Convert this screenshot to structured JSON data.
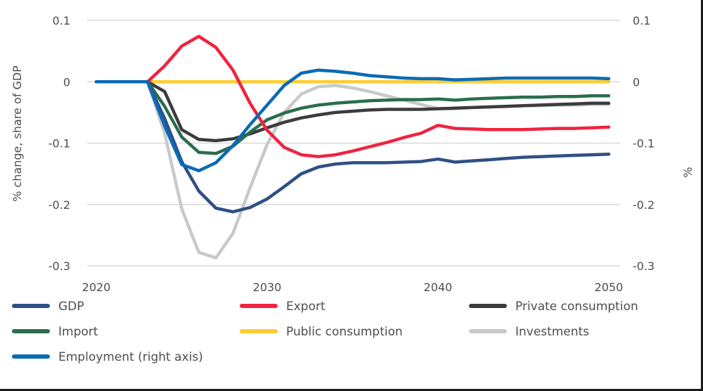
{
  "chart_data": {
    "type": "line",
    "title": "",
    "xlabel": "",
    "ylabel": "% change, share of GDP",
    "ylabel_right": "%",
    "xlim": [
      2020,
      2050
    ],
    "ylim": [
      -0.3,
      0.1
    ],
    "ylim_right": [
      -0.3,
      0.1
    ],
    "x_ticks": [
      2020,
      2030,
      2040,
      2050
    ],
    "x_tick_labels": [
      "2020",
      "2030",
      "2040",
      "2050"
    ],
    "y_ticks": [
      0.1,
      0,
      -0.1,
      -0.2,
      -0.3
    ],
    "y_tick_labels": [
      "0.1",
      "0",
      "-0.1",
      "-0.2",
      "-0.3"
    ],
    "y_tick_labels_right": [
      "0.1",
      "0",
      "-0.1",
      "-0.2",
      "-0.3"
    ],
    "grid": true,
    "legend_position": "bottom",
    "x": [
      2020,
      2021,
      2022,
      2023,
      2024,
      2025,
      2026,
      2027,
      2028,
      2029,
      2030,
      2031,
      2032,
      2033,
      2034,
      2035,
      2036,
      2037,
      2038,
      2039,
      2040,
      2041,
      2042,
      2043,
      2044,
      2045,
      2046,
      2047,
      2048,
      2049,
      2050
    ],
    "series": [
      {
        "name": "Public consumption",
        "color": "#ffcc33",
        "axis": "left",
        "values": [
          0,
          0,
          0,
          0,
          0,
          0,
          0,
          0,
          0,
          0,
          0,
          0,
          0,
          0,
          0,
          0,
          0,
          0,
          0,
          0,
          0,
          0,
          0,
          0,
          0,
          0,
          0,
          0,
          0,
          0,
          0
        ]
      },
      {
        "name": "Investments",
        "color": "#c8c9cc",
        "axis": "left",
        "values": [
          0,
          0,
          0,
          0,
          -0.084,
          -0.207,
          -0.278,
          -0.287,
          -0.247,
          -0.173,
          -0.102,
          -0.05,
          -0.02,
          -0.008,
          -0.006,
          -0.01,
          -0.016,
          -0.023,
          -0.03,
          -0.037,
          -0.044,
          -0.044,
          -0.042,
          -0.041,
          -0.04,
          -0.039,
          -0.039,
          -0.038,
          -0.038,
          -0.037,
          -0.037
        ]
      },
      {
        "name": "Private consumption",
        "color": "#3c3c3c",
        "axis": "left",
        "values": [
          0,
          0,
          0,
          0,
          -0.016,
          -0.078,
          -0.094,
          -0.096,
          -0.093,
          -0.085,
          -0.075,
          -0.066,
          -0.059,
          -0.054,
          -0.05,
          -0.048,
          -0.046,
          -0.045,
          -0.045,
          -0.045,
          -0.044,
          -0.043,
          -0.042,
          -0.041,
          -0.04,
          -0.039,
          -0.038,
          -0.037,
          -0.036,
          -0.035,
          -0.035
        ]
      },
      {
        "name": "Import",
        "color": "#2a6e4c",
        "axis": "left",
        "values": [
          0,
          0,
          0,
          0,
          -0.04,
          -0.09,
          -0.115,
          -0.117,
          -0.105,
          -0.082,
          -0.062,
          -0.051,
          -0.043,
          -0.038,
          -0.035,
          -0.033,
          -0.031,
          -0.03,
          -0.029,
          -0.029,
          -0.028,
          -0.03,
          -0.028,
          -0.027,
          -0.026,
          -0.025,
          -0.025,
          -0.024,
          -0.024,
          -0.023,
          -0.023
        ]
      },
      {
        "name": "Export",
        "color": "#f0233f",
        "axis": "left",
        "values": [
          0,
          0,
          0,
          0.0,
          0.026,
          0.058,
          0.074,
          0.056,
          0.019,
          -0.035,
          -0.079,
          -0.107,
          -0.119,
          -0.122,
          -0.119,
          -0.113,
          -0.106,
          -0.099,
          -0.091,
          -0.084,
          -0.071,
          -0.076,
          -0.077,
          -0.078,
          -0.078,
          -0.078,
          -0.077,
          -0.076,
          -0.076,
          -0.075,
          -0.074
        ]
      },
      {
        "name": "GDP",
        "color": "#2f4f86",
        "axis": "left",
        "values": [
          0,
          0,
          0,
          0,
          -0.06,
          -0.13,
          -0.178,
          -0.206,
          -0.212,
          -0.205,
          -0.191,
          -0.171,
          -0.15,
          -0.139,
          -0.134,
          -0.132,
          -0.132,
          -0.132,
          -0.131,
          -0.13,
          -0.126,
          -0.131,
          -0.129,
          -0.127,
          -0.125,
          -0.123,
          -0.122,
          -0.121,
          -0.12,
          -0.119,
          -0.118
        ]
      },
      {
        "name": "Employment (right axis)",
        "color": "#0a6ab6",
        "axis": "right",
        "values": [
          0,
          0,
          0,
          0,
          -0.072,
          -0.135,
          -0.145,
          -0.132,
          -0.104,
          -0.07,
          -0.038,
          -0.006,
          0.014,
          0.019,
          0.017,
          0.014,
          0.01,
          0.008,
          0.006,
          0.005,
          0.005,
          0.003,
          0.004,
          0.005,
          0.006,
          0.006,
          0.006,
          0.006,
          0.006,
          0.006,
          0.005
        ]
      }
    ],
    "legend": [
      {
        "label": "GDP",
        "color": "#2f4f86"
      },
      {
        "label": "Export",
        "color": "#f0233f"
      },
      {
        "label": "Private consumption",
        "color": "#3c3c3c"
      },
      {
        "label": "Import",
        "color": "#2a6e4c"
      },
      {
        "label": "Public consumption",
        "color": "#ffcc33"
      },
      {
        "label": "Investments",
        "color": "#c8c9cc"
      },
      {
        "label": "Employment (right axis)",
        "color": "#0a6ab6"
      }
    ]
  }
}
